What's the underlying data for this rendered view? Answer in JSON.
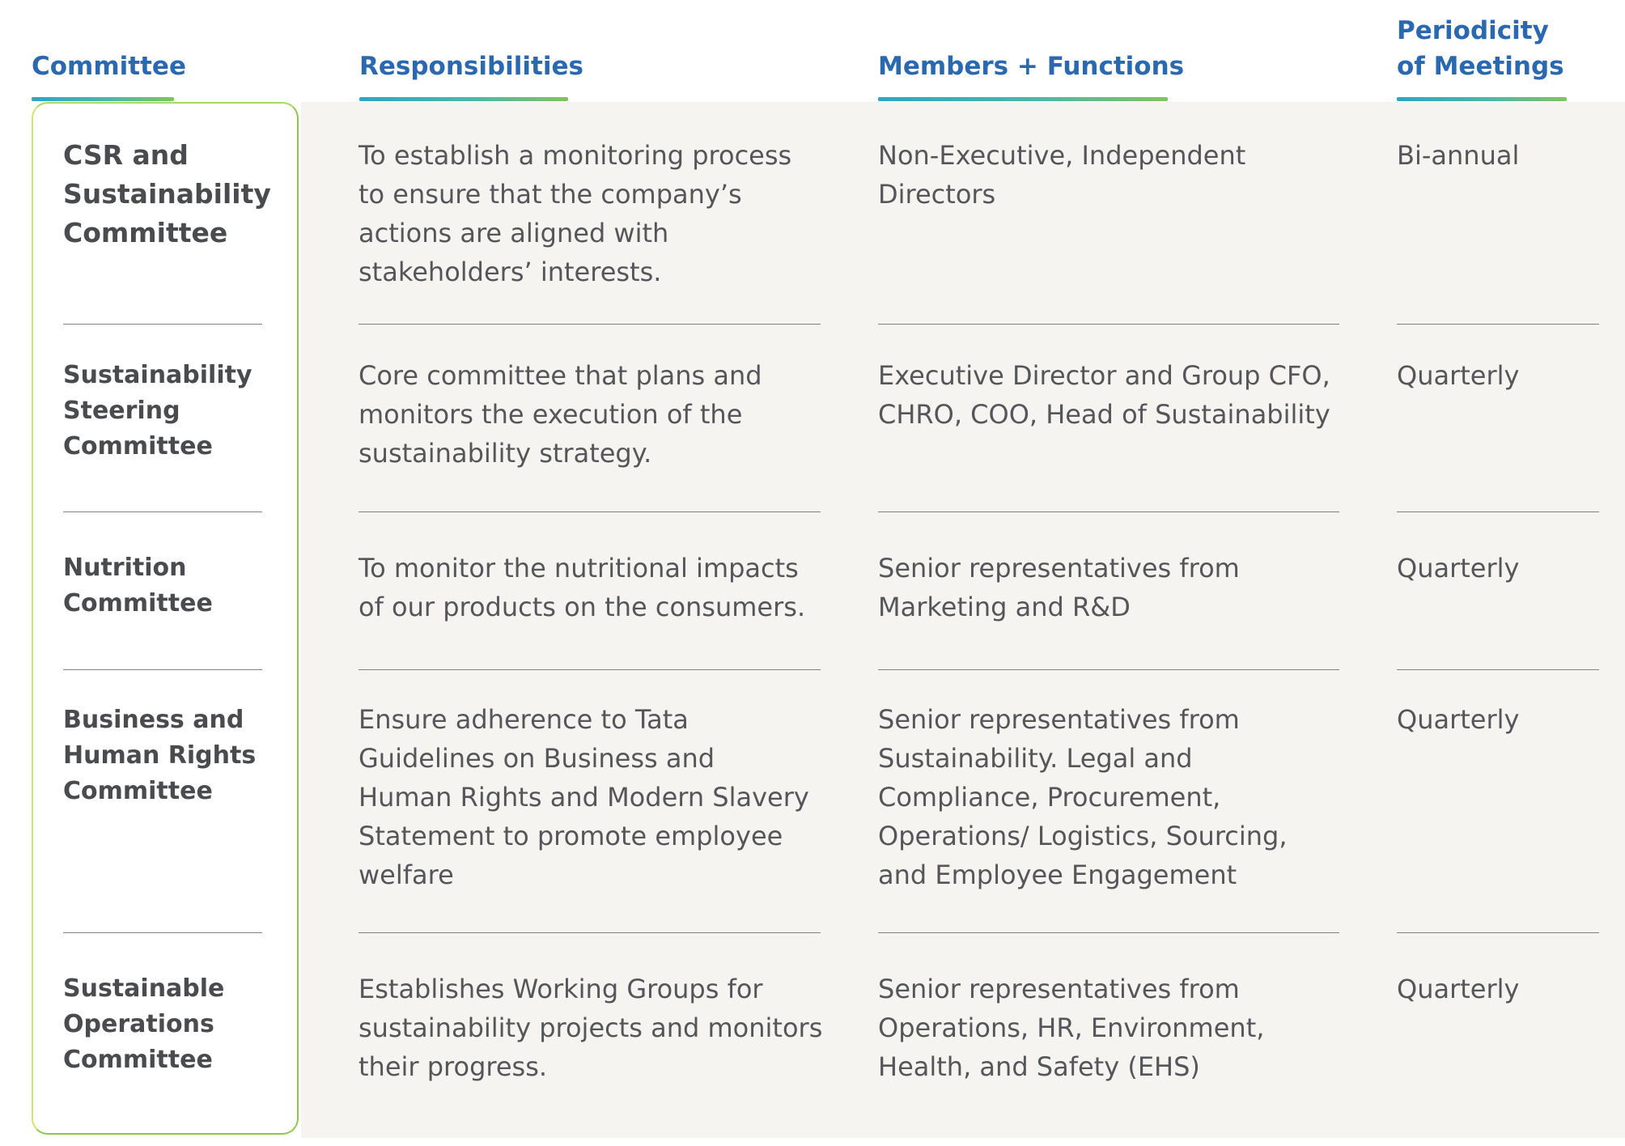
{
  "headers": {
    "committee": "Committee",
    "responsibilities": "Responsibilities",
    "members": "Members + Functions",
    "periodicity": "Periodicity\nof Meetings"
  },
  "rows": [
    {
      "committee": "CSR and\nSustainability\nCommittee",
      "responsibilities": "To establish a monitoring process\nto ensure that the company’s\nactions are aligned with\nstakeholders’ interests.",
      "members": "Non-Executive, Independent\nDirectors",
      "periodicity": "Bi-annual"
    },
    {
      "committee": "Sustainability\nSteering\nCommittee",
      "responsibilities": "Core committee that plans and\nmonitors the execution of the\nsustainability strategy.",
      "members": "Executive Director and Group CFO,\nCHRO, COO, Head of Sustainability",
      "periodicity": "Quarterly"
    },
    {
      "committee": "Nutrition\nCommittee",
      "responsibilities": "To monitor the nutritional impacts\nof our products on the consumers.",
      "members": "Senior representatives from\nMarketing and R&D",
      "periodicity": "Quarterly"
    },
    {
      "committee": "Business and\nHuman Rights\nCommittee",
      "responsibilities": "Ensure adherence to Tata\nGuidelines on Business and\nHuman Rights and Modern Slavery\nStatement to promote employee\nwelfare",
      "members": "Senior representatives from\nSustainability. Legal and\nCompliance, Procurement,\nOperations/ Logistics, Sourcing,\nand Employee Engagement",
      "periodicity": "Quarterly"
    },
    {
      "committee": "Sustainable\nOperations\nCommittee",
      "responsibilities": "Establishes Working Groups for\nsustainability projects and monitors\ntheir progress.",
      "members": "Senior representatives from\nOperations, HR, Environment,\nHealth, and Safety (EHS)",
      "periodicity": "Quarterly"
    }
  ]
}
